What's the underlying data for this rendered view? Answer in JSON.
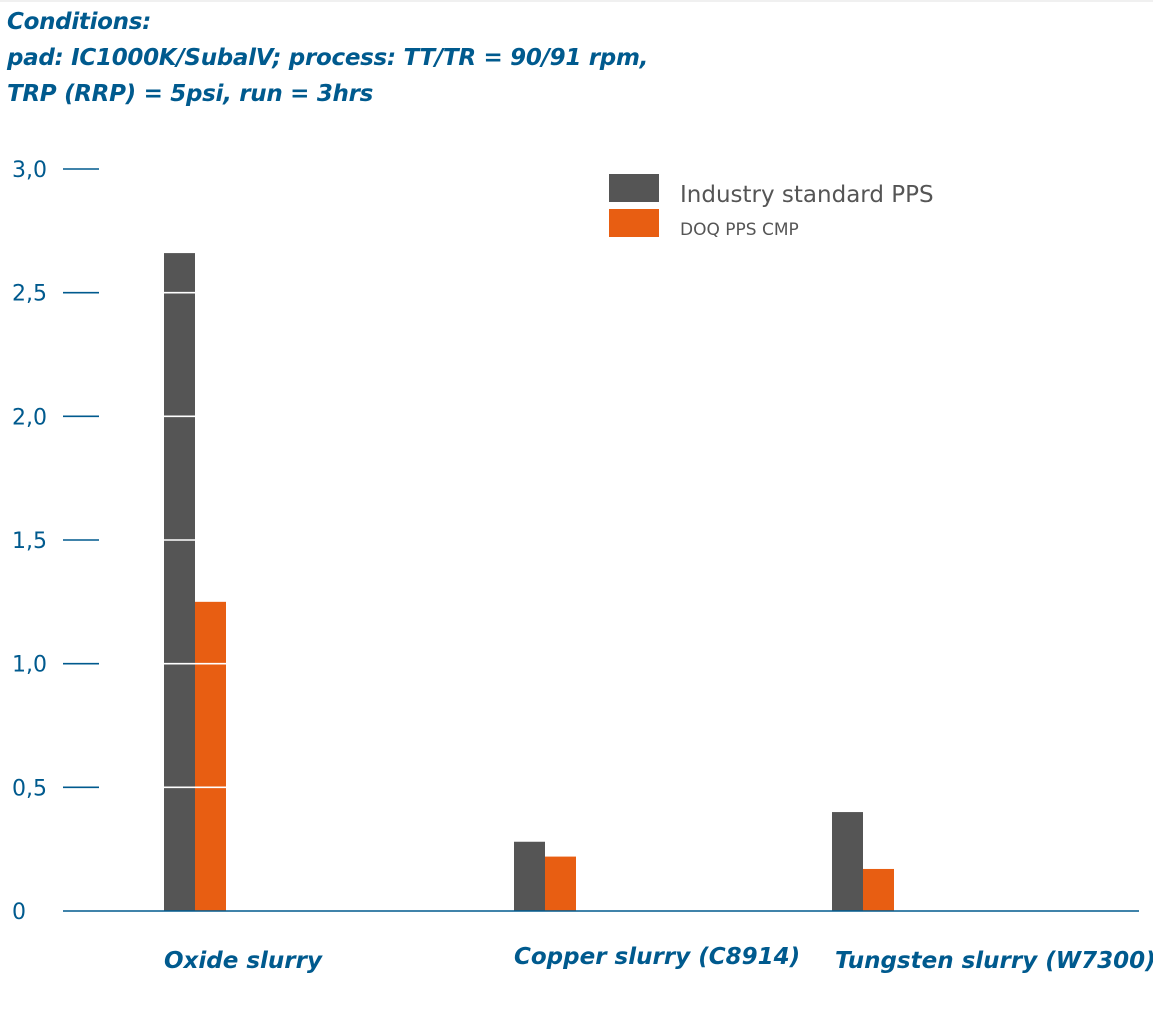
{
  "conditions": {
    "heading": "Conditions:",
    "line1": "pad: IC1000K/SubalV; process: TT/TR = 90/91 rpm,",
    "line2": "TRP (RRP) = 5psi, run = 3hrs"
  },
  "chart_data": {
    "type": "bar",
    "title": "",
    "xlabel": "",
    "ylabel": "",
    "ylim": [
      0,
      3.0
    ],
    "yticks": [
      "0",
      "0,5",
      "1,0",
      "1,5",
      "2,0",
      "2,5",
      "3,0"
    ],
    "ytick_values": [
      0,
      0.5,
      1.0,
      1.5,
      2.0,
      2.5,
      3.0
    ],
    "grid": false,
    "legend_position": "top-right",
    "categories": [
      "Oxide slurry",
      "Copper slurry (C8914)",
      "Tungsten slurry  (W7300)"
    ],
    "series": [
      {
        "name": "Industry standard PPS",
        "color": "#555555",
        "values": [
          2.66,
          0.28,
          0.4
        ]
      },
      {
        "name": "DOQ PPS CMP",
        "color": "#e85e12",
        "values": [
          1.25,
          0.22,
          0.17
        ]
      }
    ]
  }
}
